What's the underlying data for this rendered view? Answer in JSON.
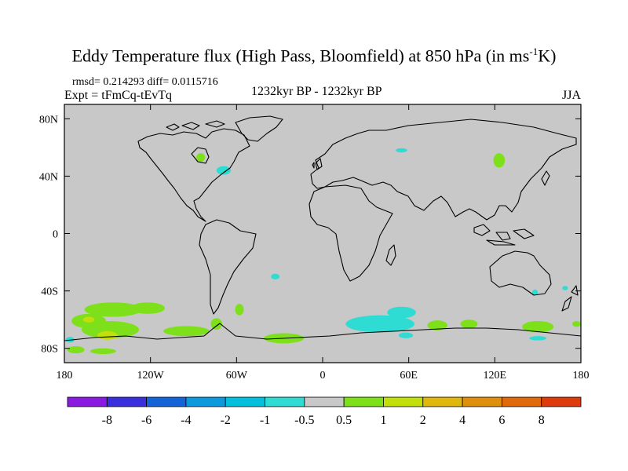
{
  "header": {
    "title_main": "Eddy Temperature flux (High Pass, Bloomfield) at 850 hPa (in ms",
    "title_sup": "-1",
    "title_tail": "K)",
    "stats": "rmsd= 0.214293 diff= 0.0115716",
    "experiment": "Expt = tFmCq-tEvTq",
    "period": "1232kyr BP - 1232kyr BP",
    "season": "JJA"
  },
  "chart_data": {
    "type": "heatmap",
    "title": "Eddy Temperature flux (High Pass, Bloomfield) at 850 hPa (in ms-1K)",
    "projection": "cylindrical-equidistant",
    "xlim": [
      -180,
      180
    ],
    "ylim": [
      -90,
      90
    ],
    "x_ticks": [
      {
        "value": -180,
        "label": "180"
      },
      {
        "value": -120,
        "label": "120W"
      },
      {
        "value": -60,
        "label": "60W"
      },
      {
        "value": 0,
        "label": "0"
      },
      {
        "value": 60,
        "label": "60E"
      },
      {
        "value": 120,
        "label": "120E"
      },
      {
        "value": 180,
        "label": "180"
      }
    ],
    "y_ticks": [
      {
        "value": 80,
        "label": "80N"
      },
      {
        "value": 40,
        "label": "40N"
      },
      {
        "value": 0,
        "label": "0"
      },
      {
        "value": -40,
        "label": "40S"
      },
      {
        "value": -80,
        "label": "80S"
      }
    ],
    "colorbar": {
      "colors": [
        "#8a1adf",
        "#3a2fdc",
        "#1463d8",
        "#0d99de",
        "#05c0dc",
        "#2edcd4",
        "#c8c8c8",
        "#7ee01a",
        "#c2df0c",
        "#dfb70d",
        "#df8f0c",
        "#df6a0b",
        "#df3a0b"
      ],
      "labels": [
        "-8",
        "-6",
        "-4",
        "-2",
        "-1",
        "-0.5",
        "0.5",
        "1",
        "2",
        "4",
        "6",
        "8"
      ]
    },
    "regions": [
      {
        "color": "#7ee01a",
        "lon": -146,
        "lat": -53,
        "rlon": 20,
        "rlat": 5
      },
      {
        "color": "#7ee01a",
        "lon": -163,
        "lat": -61,
        "rlon": 12,
        "rlat": 5
      },
      {
        "color": "#7ee01a",
        "lon": -122,
        "lat": -52,
        "rlon": 12,
        "rlat": 4
      },
      {
        "color": "#7ee01a",
        "lon": -148,
        "lat": -67,
        "rlon": 20,
        "rlat": 6
      },
      {
        "color": "#c2df0c",
        "lon": -163,
        "lat": -60,
        "rlon": 4,
        "rlat": 2
      },
      {
        "color": "#c2df0c",
        "lon": -150,
        "lat": -71,
        "rlon": 7,
        "rlat": 3
      },
      {
        "color": "#7ee01a",
        "lon": -95,
        "lat": -68,
        "rlon": 16,
        "rlat": 3.5
      },
      {
        "color": "#7ee01a",
        "lon": -172,
        "lat": -81,
        "rlon": 6,
        "rlat": 2.5
      },
      {
        "color": "#7ee01a",
        "lon": -153,
        "lat": -82,
        "rlon": 9,
        "rlat": 2
      },
      {
        "color": "#7ee01a",
        "lon": -27,
        "lat": -73,
        "rlon": 14,
        "rlat": 3.5
      },
      {
        "color": "#7ee01a",
        "lon": -74,
        "lat": -63,
        "rlon": 4,
        "rlat": 4
      },
      {
        "color": "#7ee01a",
        "lon": -58,
        "lat": -53,
        "rlon": 3,
        "rlat": 4
      },
      {
        "color": "#7ee01a",
        "lon": 80,
        "lat": -64,
        "rlon": 7,
        "rlat": 3.5
      },
      {
        "color": "#7ee01a",
        "lon": 102,
        "lat": -63,
        "rlon": 6,
        "rlat": 3
      },
      {
        "color": "#7ee01a",
        "lon": 150,
        "lat": -65,
        "rlon": 11,
        "rlat": 4
      },
      {
        "color": "#7ee01a",
        "lon": 177,
        "lat": -63,
        "rlon": 3,
        "rlat": 2
      },
      {
        "color": "#7ee01a",
        "lon": 123,
        "lat": 51,
        "rlon": 4,
        "rlat": 5
      },
      {
        "color": "#7ee01a",
        "lon": -85,
        "lat": 53,
        "rlon": 3,
        "rlat": 3
      },
      {
        "color": "#2edcd4",
        "lon": 40,
        "lat": -63,
        "rlon": 24,
        "rlat": 6
      },
      {
        "color": "#2edcd4",
        "lon": 55,
        "lat": -55,
        "rlon": 10,
        "rlat": 4
      },
      {
        "color": "#2edcd4",
        "lon": 58,
        "lat": -71,
        "rlon": 5,
        "rlat": 2
      },
      {
        "color": "#2edcd4",
        "lon": -33,
        "lat": -30,
        "rlon": 3,
        "rlat": 2
      },
      {
        "color": "#2edcd4",
        "lon": -69,
        "lat": 44,
        "rlon": 5,
        "rlat": 3
      },
      {
        "color": "#2edcd4",
        "lon": 55,
        "lat": 58,
        "rlon": 4,
        "rlat": 1.5
      },
      {
        "color": "#2edcd4",
        "lon": 148,
        "lat": -41,
        "rlon": 2,
        "rlat": 2
      },
      {
        "color": "#2edcd4",
        "lon": 169,
        "lat": -38,
        "rlon": 2,
        "rlat": 1.5
      },
      {
        "color": "#2edcd4",
        "lon": 150,
        "lat": -73,
        "rlon": 6,
        "rlat": 1.5
      },
      {
        "color": "#2edcd4",
        "lon": -176,
        "lat": -74,
        "rlon": 3,
        "rlat": 2
      }
    ]
  }
}
